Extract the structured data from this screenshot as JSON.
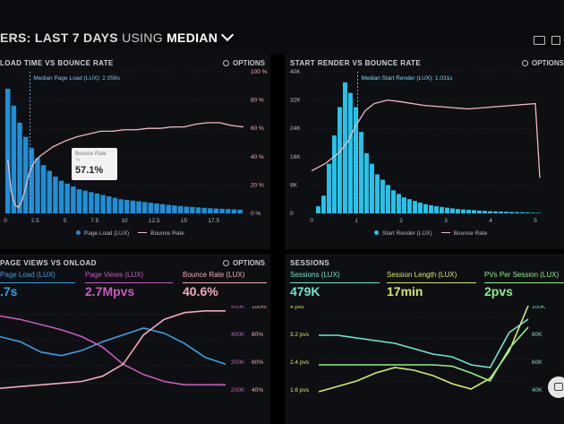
{
  "header": {
    "title_key": "ERS: LAST 7 DAYS",
    "title_using": " USING ",
    "title_agg": "MEDIAN"
  },
  "options_label": "OPTIONS",
  "panel1": {
    "title": "LOAD TIME VS BOUNCE RATE",
    "median_label": "Median Page Load (LUX): 2.056s",
    "legend": {
      "bar": "Page Load (LUX)",
      "line": "Bounce Rate"
    },
    "tooltip": {
      "label": "Bounce Rate",
      "sub": "7s",
      "value": "57.1%"
    },
    "colors": {
      "bar": "#1e8fd8",
      "line": "#f4b6c4"
    }
  },
  "panel2": {
    "title": "START RENDER VS BOUNCE RATE",
    "median_label": "Median Start Render (LUX): 1.031s",
    "legend": {
      "bar": "Start Render (LUX)",
      "line": "Bounce Rate"
    },
    "colors": {
      "bar": "#22c4ec",
      "line": "#f4b6c4"
    }
  },
  "panel3": {
    "title": "PAGE VIEWS VS ONLOAD",
    "metrics": [
      {
        "label": "Page Load (LUX)",
        "value": ".7s",
        "color": "#3aa0e6"
      },
      {
        "label": "Page Views (LUX)",
        "value": "2.7Mpvs",
        "color": "#c65cc0"
      },
      {
        "label": "Bounce Rate (LUX)",
        "value": "40.6%",
        "color": "#f4a8c0"
      }
    ]
  },
  "panel4": {
    "title": "SESSIONS",
    "metrics": [
      {
        "label": "Sessions (LUX)",
        "value": "479K",
        "color": "#6ee8d2"
      },
      {
        "label": "Session Length (LUX)",
        "value": "17min",
        "color": "#d8e86a"
      },
      {
        "label": "PVs Per Session (LUX)",
        "value": "2pvs",
        "color": "#8ff08a"
      }
    ]
  },
  "chart_data": [
    {
      "type": "bar",
      "title": "LOAD TIME VS BOUNCE RATE",
      "x_ticks": [
        "0",
        "2.5",
        "5",
        "7.5",
        "10",
        "12.5",
        "15",
        "17.5"
      ],
      "y_right_ticks": [
        "100 %",
        "80 %",
        "60 %",
        "40 %",
        "20 %",
        "0 %"
      ],
      "median_x": 2.056,
      "xlim": [
        0,
        20
      ],
      "ylim_right": [
        0,
        100
      ],
      "series": [
        {
          "name": "Page Load (LUX)",
          "type": "bar",
          "x_start": 0,
          "x_step": 0.5,
          "values": [
            88,
            76,
            64,
            54,
            46,
            39,
            34,
            30,
            26,
            23,
            21,
            19,
            17,
            16,
            15,
            14,
            13,
            12,
            11,
            10,
            9.5,
            9,
            8.5,
            8,
            7.5,
            7,
            6.5,
            6,
            5.6,
            5.2,
            4.8,
            4.5,
            4.2,
            3.9,
            3.6,
            3.4,
            3.2,
            3,
            2.8,
            2.6
          ]
        },
        {
          "name": "Bounce Rate",
          "type": "line",
          "x": [
            0.2,
            0.5,
            0.8,
            1.1,
            1.4,
            1.7,
            2,
            2.3,
            2.6,
            3,
            3.5,
            4,
            5,
            6,
            7,
            8,
            9,
            10,
            11,
            12,
            13,
            14,
            15,
            16,
            17,
            18,
            19,
            20
          ],
          "values": [
            38,
            15,
            6,
            4,
            9,
            18,
            28,
            34,
            38,
            41,
            44,
            47,
            51,
            54,
            56,
            58,
            58,
            59,
            59,
            60,
            60,
            61,
            61,
            63,
            64,
            64,
            62,
            61
          ]
        }
      ]
    },
    {
      "type": "bar",
      "title": "START RENDER VS BOUNCE RATE",
      "x_ticks": [
        "0",
        "1",
        "2",
        "3",
        "4",
        "5"
      ],
      "y_left_ticks": [
        "40K",
        "32K",
        "24K",
        "16K",
        "8K",
        "0"
      ],
      "median_x": 1.031,
      "xlim": [
        0,
        5.2
      ],
      "ylim_left": [
        0,
        40000
      ],
      "series": [
        {
          "name": "Start Render (LUX)",
          "type": "bar",
          "x_start": 0.1,
          "x_step": 0.12,
          "values": [
            2000,
            5000,
            14000,
            22000,
            30000,
            37000,
            34000,
            30000,
            23000,
            17000,
            14000,
            11000,
            9500,
            8000,
            6500,
            5500,
            4500,
            4000,
            3500,
            3000,
            2600,
            2300,
            2000,
            1800,
            1600,
            1400,
            1200,
            1100,
            1000,
            900,
            800,
            700,
            600,
            550,
            500,
            450,
            400,
            350,
            300,
            250,
            200,
            150,
            100
          ]
        },
        {
          "name": "Bounce Rate",
          "type": "line",
          "x": [
            0,
            0.3,
            0.6,
            0.8,
            1,
            1.2,
            1.4,
            1.7,
            2,
            2.5,
            3,
            3.5,
            4,
            4.5,
            5,
            5.1
          ],
          "values": [
            12000,
            14000,
            17000,
            20000,
            25000,
            29000,
            31000,
            32000,
            31500,
            30500,
            30000,
            29500,
            30000,
            30500,
            31000,
            10000
          ]
        }
      ]
    },
    {
      "type": "line",
      "title": "PAGE VIEWS VS ONLOAD",
      "y_mid_ticks": [
        "500K",
        "400K",
        "300K",
        "200K"
      ],
      "y_right_ticks": [
        "100%",
        "80%",
        "60%",
        "40%"
      ],
      "series": [
        {
          "name": "Page Load (LUX)",
          "values": [
            3.2,
            2.9,
            2.3,
            2.1,
            2.4,
            2.9,
            3.3,
            3.7,
            3.4,
            2.8,
            2.0,
            1.6
          ]
        },
        {
          "name": "Page Views (LUX)",
          "values": [
            4.4,
            4.2,
            3.9,
            3.6,
            3.2,
            2.6,
            1.6,
            1.0,
            0.6,
            0.4,
            0.4,
            0.4
          ]
        },
        {
          "name": "Bounce Rate (LUX)",
          "values": [
            0.2,
            0.3,
            0.4,
            0.5,
            0.6,
            0.9,
            1.6,
            3.3,
            4.2,
            4.6,
            4.7,
            4.7
          ]
        }
      ]
    },
    {
      "type": "line",
      "title": "SESSIONS",
      "y_left_ticks": [
        "4 pvs",
        "3.2 pvs",
        "2.4 pvs",
        "1.6 pvs"
      ],
      "y_right_ticks": [
        "100K",
        "80K",
        "60K",
        "40K"
      ],
      "series": [
        {
          "name": "Sessions (LUX)",
          "values": [
            3.3,
            3.3,
            3.2,
            3.1,
            3.0,
            2.8,
            2.6,
            2.5,
            2.2,
            2.1,
            3.4,
            3.9
          ]
        },
        {
          "name": "Session Length (LUX)",
          "values": [
            1.2,
            1.4,
            1.6,
            1.9,
            2.1,
            2.0,
            1.8,
            1.5,
            1.3,
            1.7,
            2.7,
            4.4
          ]
        },
        {
          "name": "PVs Per Session (LUX)",
          "values": [
            2.2,
            2.2,
            2.2,
            2.2,
            2.2,
            2.2,
            2.2,
            2.15,
            1.9,
            1.6,
            2.8,
            3.6
          ]
        }
      ]
    }
  ]
}
